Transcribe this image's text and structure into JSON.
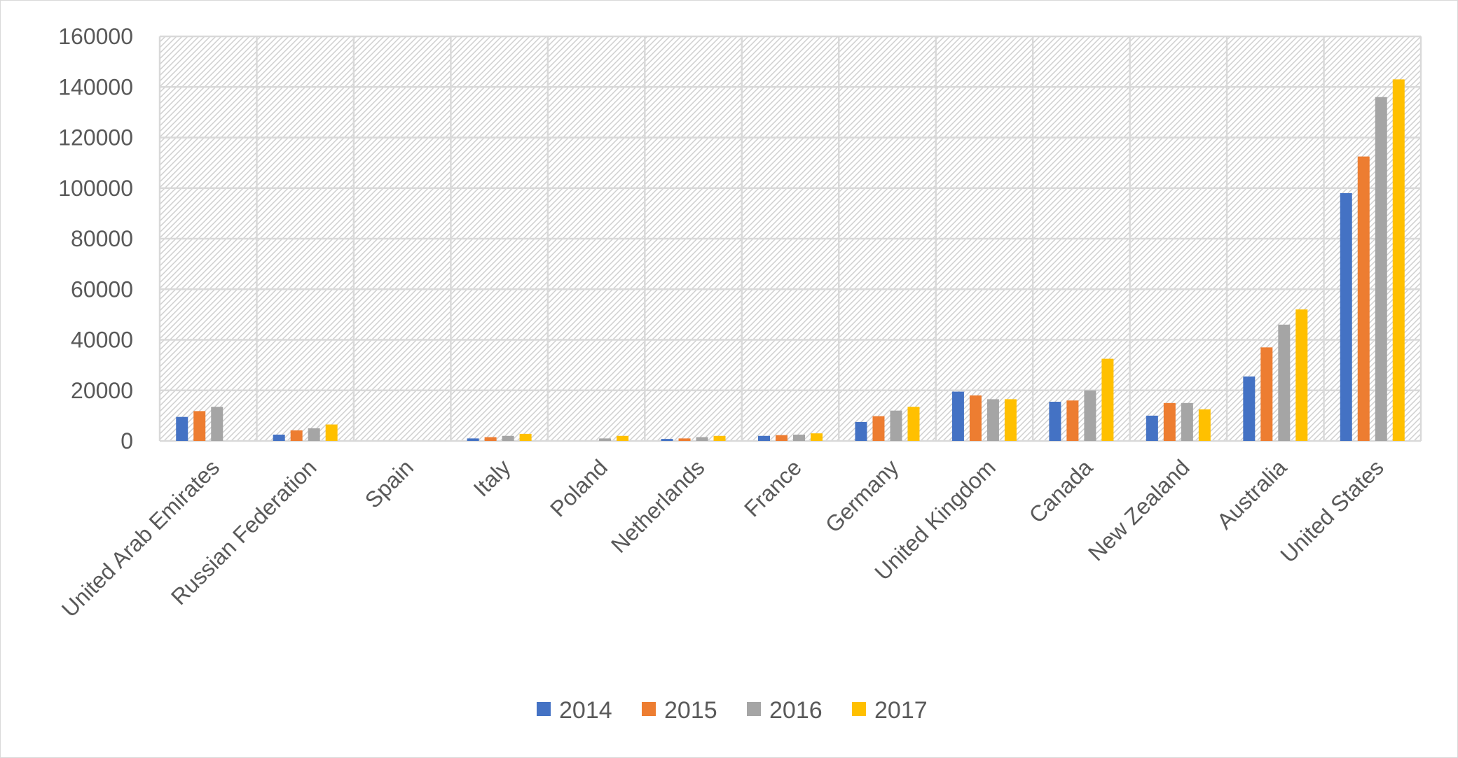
{
  "chart_data": {
    "type": "bar",
    "title": "",
    "xlabel": "",
    "ylabel": "",
    "ylim": [
      0,
      160000
    ],
    "yticks": [
      0,
      20000,
      40000,
      60000,
      80000,
      100000,
      120000,
      140000,
      160000
    ],
    "grid": true,
    "legend_position": "bottom",
    "categories": [
      "United Arab Emirates",
      "Russian Federation",
      "Spain",
      "Italy",
      "Poland",
      "Netherlands",
      "France",
      "Germany",
      "United Kingdom",
      "Canada",
      "New Zealand",
      "Australia",
      "United States"
    ],
    "series": [
      {
        "name": "2014",
        "color": "#4472C4",
        "values": [
          9500,
          2500,
          0,
          1000,
          0,
          800,
          2000,
          7500,
          19500,
          15500,
          10000,
          25500,
          98000
        ]
      },
      {
        "name": "2015",
        "color": "#ED7D31",
        "values": [
          11800,
          4200,
          0,
          1500,
          0,
          1000,
          2300,
          9800,
          18000,
          16000,
          15000,
          37000,
          112500
        ]
      },
      {
        "name": "2016",
        "color": "#A5A5A5",
        "values": [
          13500,
          5000,
          0,
          2000,
          1000,
          1500,
          2500,
          12000,
          16500,
          20000,
          15000,
          46000,
          136000
        ]
      },
      {
        "name": "2017",
        "color": "#FFC000",
        "values": [
          0,
          6500,
          0,
          2800,
          2000,
          2000,
          3000,
          13500,
          16500,
          32500,
          12500,
          52000,
          143000
        ]
      }
    ]
  }
}
